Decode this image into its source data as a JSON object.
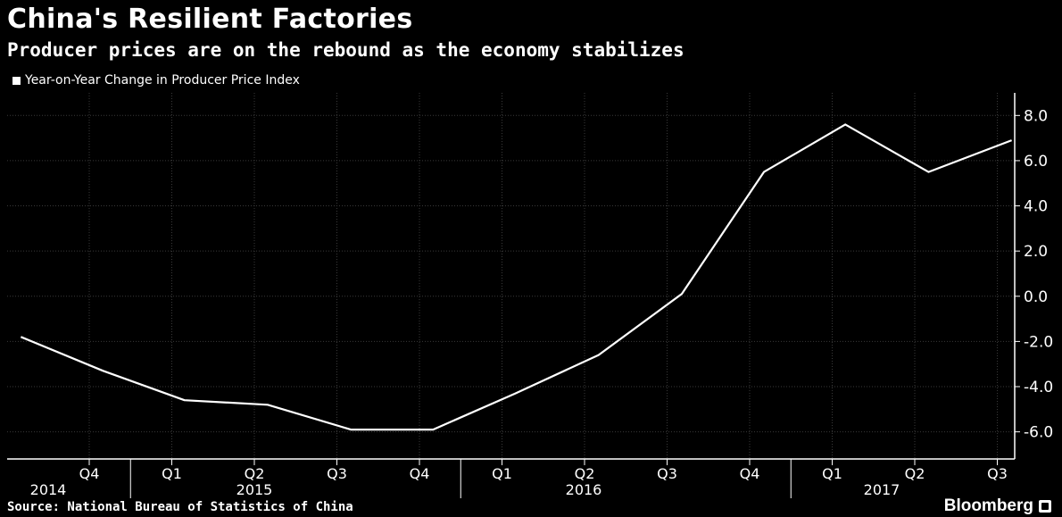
{
  "title": "China's Resilient Factories",
  "subtitle": "Producer prices are on the rebound as the economy stabilizes",
  "source": "Source: National Bureau of Statistics of China",
  "brand": "Bloomberg",
  "colors": {
    "background": "#000000",
    "line": "#ffffff",
    "grid": "#3a3a3a"
  },
  "chart_data": {
    "type": "line",
    "series": [
      {
        "name": "Year-on-Year Change in Producer Price Index",
        "points": [
          [
            "2014-09-01",
            -1.8
          ],
          [
            "2014-12-01",
            -3.3
          ],
          [
            "2015-03-01",
            -4.6
          ],
          [
            "2015-06-01",
            -4.8
          ],
          [
            "2015-09-01",
            -5.9
          ],
          [
            "2015-12-01",
            -5.9
          ],
          [
            "2016-03-01",
            -4.3
          ],
          [
            "2016-06-01",
            -2.6
          ],
          [
            "2016-09-01",
            0.1
          ],
          [
            "2016-12-01",
            5.5
          ],
          [
            "2017-03-01",
            7.6
          ],
          [
            "2017-06-01",
            5.5
          ],
          [
            "2017-09-01",
            6.9
          ]
        ]
      }
    ],
    "y_ticks": [
      "8.0",
      "6.0",
      "4.0",
      "2.0",
      "0.0",
      "-2.0",
      "-4.0",
      "-6.0"
    ],
    "ylim": [
      -7.2,
      9.0
    ],
    "x_quarter_labels": [
      "Q4",
      "Q1",
      "Q2",
      "Q3",
      "Q4",
      "Q1",
      "Q2",
      "Q3",
      "Q4",
      "Q1",
      "Q2",
      "Q3"
    ],
    "x_year_labels": [
      "2014",
      "2015",
      "2016",
      "2017"
    ],
    "grid": true,
    "legend_position": "top-left",
    "y_axis_position": "right"
  }
}
